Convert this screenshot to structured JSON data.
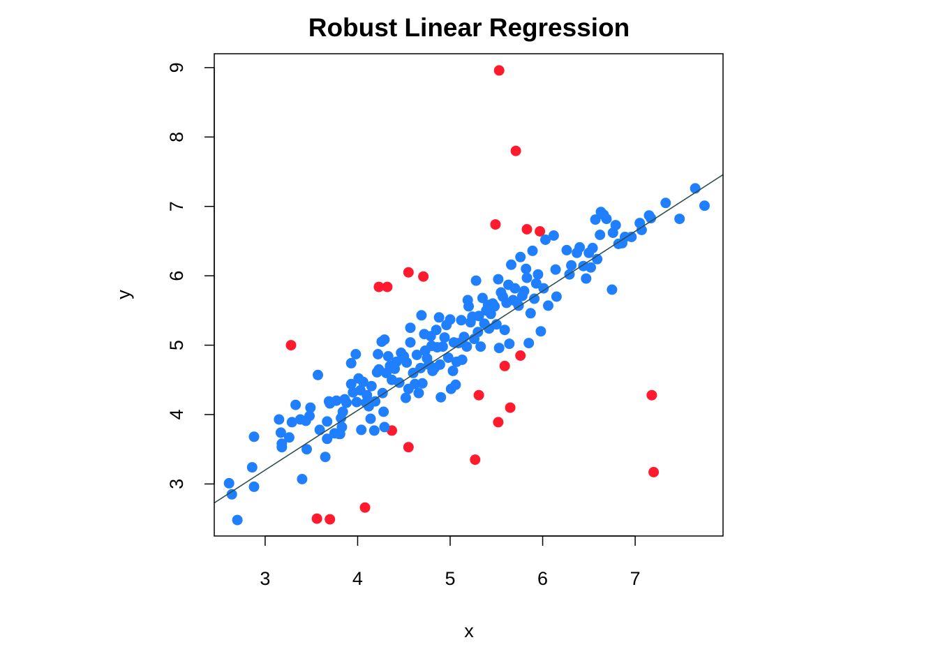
{
  "chart_data": {
    "type": "scatter",
    "title": "Robust Linear Regression",
    "xlabel": "x",
    "ylabel": "y",
    "xlim": [
      2.45,
      7.95
    ],
    "ylim": [
      2.25,
      9.2
    ],
    "xticks": [
      3,
      4,
      5,
      6,
      7
    ],
    "yticks": [
      3,
      4,
      5,
      6,
      7,
      8,
      9
    ],
    "grid": false,
    "legend": "none",
    "colors": {
      "inlier": "#1f7fff",
      "outlier": "#ff1a2e",
      "line": "#2f4f4f"
    },
    "regression_line": {
      "intercept": 0.62,
      "slope": 0.86
    },
    "series": [
      {
        "role": "outliers",
        "color": "#ff1a2e",
        "points": [
          [
            5.53,
            8.96
          ],
          [
            5.71,
            7.8
          ],
          [
            5.49,
            6.74
          ],
          [
            5.83,
            6.67
          ],
          [
            5.97,
            6.64
          ],
          [
            4.55,
            6.05
          ],
          [
            4.71,
            5.99
          ],
          [
            4.23,
            5.84
          ],
          [
            4.32,
            5.84
          ],
          [
            3.28,
            5.0
          ],
          [
            5.76,
            4.85
          ],
          [
            5.59,
            4.7
          ],
          [
            5.31,
            4.28
          ],
          [
            7.18,
            4.28
          ],
          [
            5.65,
            4.1
          ],
          [
            5.52,
            3.89
          ],
          [
            4.37,
            3.77
          ],
          [
            4.55,
            3.53
          ],
          [
            5.27,
            3.35
          ],
          [
            7.2,
            3.17
          ],
          [
            4.08,
            2.66
          ],
          [
            3.56,
            2.5
          ],
          [
            3.7,
            2.49
          ]
        ]
      },
      {
        "role": "inliers",
        "color": "#1f7fff",
        "points": [
          [
            2.61,
            3.01
          ],
          [
            2.64,
            2.85
          ],
          [
            2.7,
            2.48
          ],
          [
            2.86,
            3.24
          ],
          [
            2.88,
            3.68
          ],
          [
            2.88,
            2.96
          ],
          [
            3.15,
            3.93
          ],
          [
            3.17,
            3.74
          ],
          [
            3.18,
            3.53
          ],
          [
            3.18,
            3.58
          ],
          [
            3.26,
            3.67
          ],
          [
            3.29,
            3.89
          ],
          [
            3.33,
            4.14
          ],
          [
            3.38,
            3.93
          ],
          [
            3.4,
            3.07
          ],
          [
            3.44,
            3.91
          ],
          [
            3.45,
            3.5
          ],
          [
            3.48,
            3.98
          ],
          [
            3.49,
            4.1
          ],
          [
            3.57,
            4.57
          ],
          [
            3.59,
            3.78
          ],
          [
            3.65,
            3.39
          ],
          [
            3.67,
            3.9
          ],
          [
            3.67,
            3.65
          ],
          [
            3.69,
            4.19
          ],
          [
            3.7,
            4.16
          ],
          [
            3.75,
            3.73
          ],
          [
            3.77,
            4.2
          ],
          [
            3.8,
            3.72
          ],
          [
            3.81,
            3.72
          ],
          [
            3.82,
            3.95
          ],
          [
            3.83,
            3.82
          ],
          [
            3.84,
            4.04
          ],
          [
            3.86,
            4.22
          ],
          [
            3.88,
            4.17
          ],
          [
            3.93,
            4.74
          ],
          [
            3.93,
            4.44
          ],
          [
            3.95,
            4.32
          ],
          [
            3.98,
            4.87
          ],
          [
            3.99,
            4.18
          ],
          [
            4.01,
            4.52
          ],
          [
            4.03,
            4.35
          ],
          [
            4.04,
            3.78
          ],
          [
            4.06,
            4.47
          ],
          [
            4.09,
            4.17
          ],
          [
            4.1,
            4.28
          ],
          [
            4.12,
            4.12
          ],
          [
            4.14,
            3.94
          ],
          [
            4.15,
            4.41
          ],
          [
            4.18,
            3.77
          ],
          [
            4.19,
            4.19
          ],
          [
            4.21,
            4.61
          ],
          [
            4.22,
            4.87
          ],
          [
            4.23,
            4.65
          ],
          [
            4.26,
            5.05
          ],
          [
            4.27,
            4.31
          ],
          [
            4.28,
            4.04
          ],
          [
            4.29,
            5.08
          ],
          [
            4.29,
            3.82
          ],
          [
            4.31,
            4.6
          ],
          [
            4.33,
            4.84
          ],
          [
            4.35,
            4.7
          ],
          [
            4.37,
            4.5
          ],
          [
            4.4,
            4.66
          ],
          [
            4.42,
            4.76
          ],
          [
            4.45,
            4.46
          ],
          [
            4.47,
            4.89
          ],
          [
            4.5,
            4.84
          ],
          [
            4.52,
            4.24
          ],
          [
            4.53,
            4.75
          ],
          [
            4.55,
            4.37
          ],
          [
            4.57,
            5.25
          ],
          [
            4.57,
            5.04
          ],
          [
            4.6,
            4.6
          ],
          [
            4.62,
            4.44
          ],
          [
            4.64,
            4.86
          ],
          [
            4.66,
            4.31
          ],
          [
            4.68,
            4.67
          ],
          [
            4.69,
            5.43
          ],
          [
            4.7,
            4.45
          ],
          [
            4.72,
            5.16
          ],
          [
            4.73,
            4.92
          ],
          [
            4.75,
            4.81
          ],
          [
            4.77,
            4.72
          ],
          [
            4.79,
            5.13
          ],
          [
            4.8,
            4.99
          ],
          [
            4.81,
            4.63
          ],
          [
            4.83,
            4.67
          ],
          [
            4.85,
            5.22
          ],
          [
            4.86,
            4.97
          ],
          [
            4.88,
            5.4
          ],
          [
            4.89,
            4.72
          ],
          [
            4.9,
            4.25
          ],
          [
            4.92,
            4.98
          ],
          [
            4.94,
            5.11
          ],
          [
            4.96,
            5.29
          ],
          [
            4.98,
            4.82
          ],
          [
            5.0,
            5.37
          ],
          [
            5.01,
            4.37
          ],
          [
            5.03,
            4.63
          ],
          [
            5.04,
            5.04
          ],
          [
            5.06,
            4.43
          ],
          [
            5.07,
            4.76
          ],
          [
            5.09,
            5.03
          ],
          [
            5.12,
            5.36
          ],
          [
            5.13,
            4.79
          ],
          [
            5.15,
            5.12
          ],
          [
            5.18,
            4.98
          ],
          [
            5.19,
            5.65
          ],
          [
            5.2,
            5.56
          ],
          [
            5.22,
            5.33
          ],
          [
            5.24,
            5.41
          ],
          [
            5.26,
            5.09
          ],
          [
            5.28,
            5.93
          ],
          [
            5.3,
            5.19
          ],
          [
            5.31,
            5.42
          ],
          [
            5.33,
            4.98
          ],
          [
            5.35,
            5.68
          ],
          [
            5.37,
            5.31
          ],
          [
            5.39,
            5.5
          ],
          [
            5.41,
            5.58
          ],
          [
            5.42,
            5.24
          ],
          [
            5.44,
            5.45
          ],
          [
            5.46,
            5.6
          ],
          [
            5.48,
            5.56
          ],
          [
            5.5,
            5.3
          ],
          [
            5.52,
            5.95
          ],
          [
            5.53,
            4.96
          ],
          [
            5.55,
            5.76
          ],
          [
            5.57,
            5.7
          ],
          [
            5.59,
            5.22
          ],
          [
            5.61,
            5.61
          ],
          [
            5.63,
            5.87
          ],
          [
            5.64,
            5.02
          ],
          [
            5.66,
            6.16
          ],
          [
            5.68,
            5.65
          ],
          [
            5.7,
            5.82
          ],
          [
            5.72,
            5.62
          ],
          [
            5.74,
            5.57
          ],
          [
            5.76,
            6.27
          ],
          [
            5.78,
            5.71
          ],
          [
            5.8,
            5.78
          ],
          [
            5.82,
            6.1
          ],
          [
            5.83,
            5.97
          ],
          [
            5.85,
            5.03
          ],
          [
            5.87,
            5.46
          ],
          [
            5.89,
            6.36
          ],
          [
            5.91,
            5.67
          ],
          [
            5.93,
            5.89
          ],
          [
            5.95,
            6.02
          ],
          [
            5.98,
            5.2
          ],
          [
            6.01,
            5.82
          ],
          [
            6.03,
            6.52
          ],
          [
            6.06,
            5.57
          ],
          [
            6.12,
            6.58
          ],
          [
            6.14,
            6.09
          ],
          [
            6.15,
            5.7
          ],
          [
            6.26,
            6.37
          ],
          [
            6.29,
            6.02
          ],
          [
            6.31,
            6.15
          ],
          [
            6.37,
            6.33
          ],
          [
            6.4,
            6.41
          ],
          [
            6.44,
            6.14
          ],
          [
            6.47,
            5.96
          ],
          [
            6.5,
            6.33
          ],
          [
            6.52,
            6.12
          ],
          [
            6.54,
            6.4
          ],
          [
            6.57,
            6.81
          ],
          [
            6.59,
            6.24
          ],
          [
            6.62,
            6.59
          ],
          [
            6.63,
            6.92
          ],
          [
            6.66,
            6.88
          ],
          [
            6.69,
            6.82
          ],
          [
            6.75,
            5.8
          ],
          [
            6.76,
            6.62
          ],
          [
            6.79,
            6.73
          ],
          [
            6.82,
            6.46
          ],
          [
            6.86,
            6.47
          ],
          [
            6.89,
            6.56
          ],
          [
            6.96,
            6.56
          ],
          [
            7.05,
            6.76
          ],
          [
            7.07,
            6.66
          ],
          [
            7.15,
            6.87
          ],
          [
            7.17,
            6.83
          ],
          [
            7.33,
            7.05
          ],
          [
            7.48,
            6.82
          ],
          [
            7.65,
            7.26
          ],
          [
            7.75,
            7.01
          ]
        ]
      }
    ]
  }
}
